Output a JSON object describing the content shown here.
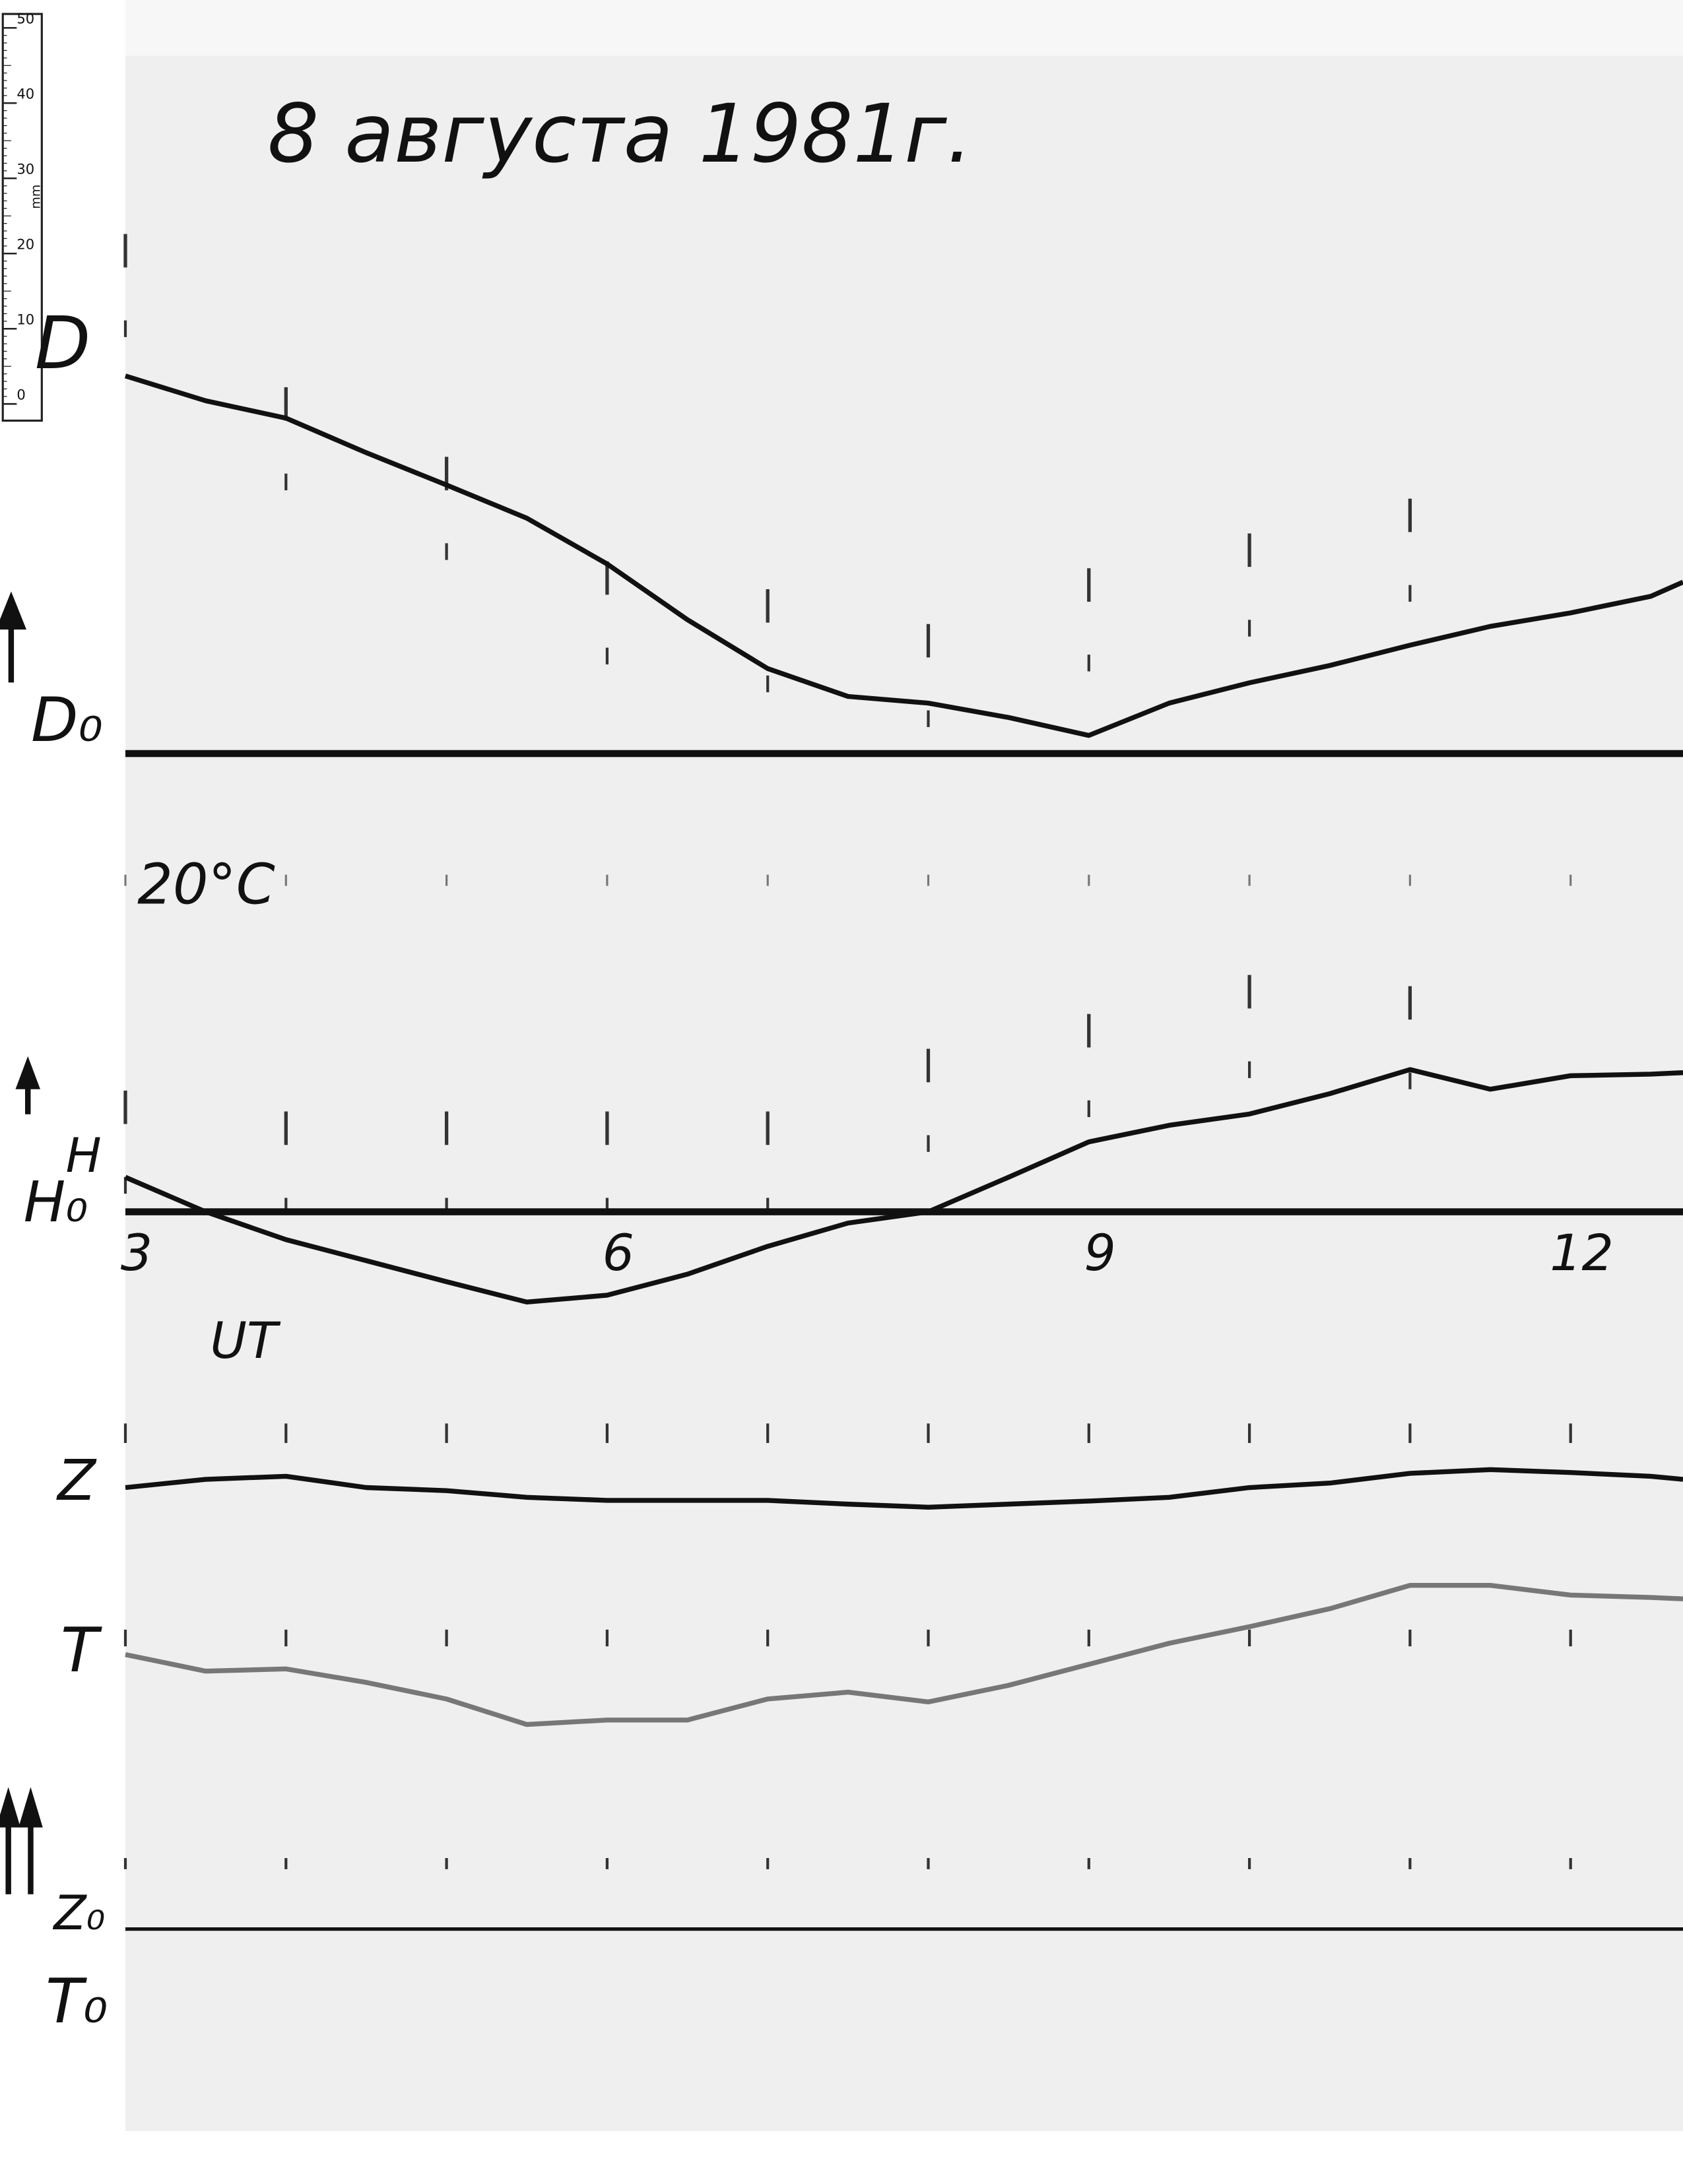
{
  "chart_data": {
    "type": "line",
    "title": "8 августа 1981г.",
    "x_label": "UT",
    "temperature_label": "20°C",
    "x": [
      3,
      3.5,
      4,
      4.5,
      5,
      5.5,
      6,
      6.5,
      7,
      7.5,
      8,
      8.5,
      9,
      9.5,
      10,
      10.5,
      11,
      11.5,
      12,
      12.5,
      12.7
    ],
    "xlim": [
      3,
      12.7
    ],
    "xticks": [
      3,
      6,
      9,
      12
    ],
    "series": [
      {
        "name": "D",
        "baseline_label": "D₀",
        "color": "#111111",
        "values": [
          50.2,
          46.9,
          44.6,
          40.0,
          35.7,
          31.3,
          25.2,
          17.8,
          11.3,
          7.6,
          6.7,
          4.8,
          2.4,
          6.7,
          9.4,
          11.7,
          14.4,
          16.9,
          18.7,
          20.9,
          22.8
        ]
      },
      {
        "name": "H",
        "baseline_label": "H₀",
        "color": "#111111",
        "values": [
          4.6,
          0,
          -3.7,
          -6.5,
          -9.3,
          -12,
          -11.1,
          -8.3,
          -4.6,
          -1.5,
          0,
          4.6,
          9.3,
          11.5,
          13,
          15.7,
          18.9,
          16.3,
          18.1,
          18.3,
          18.5
        ]
      },
      {
        "name": "Z",
        "baseline_label": "Z₀",
        "color": "#111111",
        "values": [
          58.7,
          59.8,
          60.2,
          58.7,
          58.3,
          57.4,
          57,
          57,
          57,
          56.5,
          56.1,
          56.5,
          56.9,
          57.4,
          58.7,
          59.3,
          60.6,
          61.1,
          60.7,
          60.2,
          59.8
        ]
      },
      {
        "name": "T",
        "baseline_label": "T₀",
        "color": "#777777",
        "values": [
          36.5,
          34.3,
          34.6,
          32.8,
          30.6,
          27.2,
          27.8,
          27.8,
          30.6,
          31.5,
          30.2,
          32.4,
          35.2,
          38,
          40.2,
          42.6,
          45.7,
          45.7,
          44.4,
          44.1,
          43.9
        ]
      }
    ],
    "ruler": {
      "unit": "mm",
      "ticks": [
        0,
        10,
        20,
        30,
        40,
        50
      ]
    }
  }
}
